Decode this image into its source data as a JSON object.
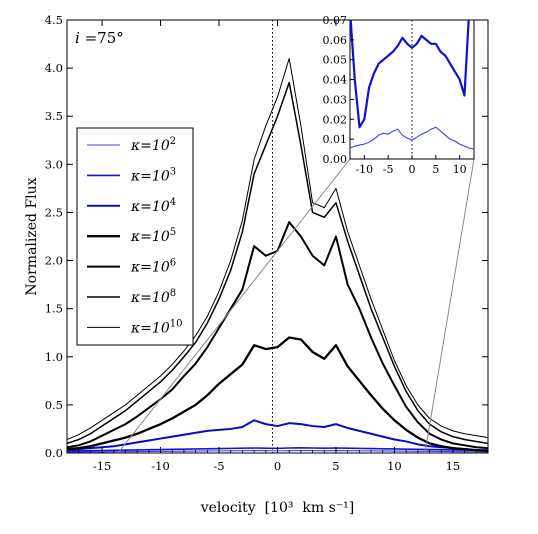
{
  "chart_data": {
    "type": "line",
    "panel_label_var": "i",
    "panel_label_value": " =75°",
    "xlabel": "velocity  [10³  km s⁻¹]",
    "ylabel": "Normalized Flux",
    "xlim": [
      -18,
      18
    ],
    "ylim": [
      0,
      4.5
    ],
    "x_ticks": [
      -15,
      -10,
      -5,
      0,
      5,
      10,
      15
    ],
    "y_ticks": [
      0.0,
      0.5,
      1.0,
      1.5,
      2.0,
      2.5,
      3.0,
      3.5,
      4.0,
      4.5
    ],
    "y_tick_labels": [
      "0.0",
      "0.5",
      "1.0",
      "1.5",
      "2.0",
      "2.5",
      "3.0",
      "3.5",
      "4.0",
      "4.5"
    ],
    "grid": false,
    "legend_position": "left",
    "zero_line": "dotted vertical line at x = 0",
    "x": [
      -18,
      -17,
      -16,
      -15,
      -14,
      -13,
      -12,
      -11,
      -10,
      -9,
      -8,
      -7,
      -6,
      -5,
      -4,
      -3,
      -2,
      -1,
      0,
      1,
      2,
      3,
      4,
      5,
      6,
      7,
      8,
      9,
      10,
      11,
      12,
      13,
      14,
      15,
      16,
      17,
      18
    ],
    "series": [
      {
        "name": "κ=10²",
        "color": "#4040ee",
        "values": [
          0.01,
          0.011,
          0.012,
          0.012,
          0.013,
          0.014,
          0.015,
          0.016,
          0.017,
          0.018,
          0.019,
          0.02,
          0.021,
          0.022,
          0.023,
          0.024,
          0.025,
          0.024,
          0.022,
          0.024,
          0.026,
          0.025,
          0.023,
          0.025,
          0.024,
          0.023,
          0.022,
          0.021,
          0.02,
          0.019,
          0.018,
          0.017,
          0.016,
          0.015,
          0.014,
          0.013,
          0.012
        ]
      },
      {
        "name": "κ=10³",
        "color": "#1515d8",
        "values": [
          0.02,
          0.022,
          0.024,
          0.026,
          0.028,
          0.03,
          0.032,
          0.034,
          0.036,
          0.038,
          0.04,
          0.042,
          0.044,
          0.046,
          0.048,
          0.05,
          0.052,
          0.05,
          0.048,
          0.052,
          0.054,
          0.052,
          0.05,
          0.052,
          0.05,
          0.048,
          0.046,
          0.044,
          0.042,
          0.04,
          0.038,
          0.036,
          0.034,
          0.032,
          0.03,
          0.028,
          0.026
        ]
      },
      {
        "name": "κ=10⁴",
        "color": "#0a0ac8",
        "values": [
          0.03,
          0.04,
          0.05,
          0.06,
          0.07,
          0.09,
          0.11,
          0.13,
          0.15,
          0.17,
          0.19,
          0.21,
          0.23,
          0.24,
          0.25,
          0.27,
          0.34,
          0.3,
          0.28,
          0.31,
          0.3,
          0.28,
          0.27,
          0.3,
          0.26,
          0.23,
          0.2,
          0.17,
          0.14,
          0.12,
          0.09,
          0.07,
          0.06,
          0.05,
          0.04,
          0.03,
          0.03
        ]
      },
      {
        "name": "κ=10⁵",
        "color": "#000000",
        "values": [
          0.04,
          0.05,
          0.07,
          0.1,
          0.13,
          0.16,
          0.2,
          0.25,
          0.3,
          0.36,
          0.43,
          0.5,
          0.6,
          0.72,
          0.82,
          0.92,
          1.12,
          1.08,
          1.1,
          1.2,
          1.18,
          1.05,
          0.98,
          1.12,
          0.9,
          0.75,
          0.6,
          0.46,
          0.34,
          0.24,
          0.16,
          0.1,
          0.07,
          0.05,
          0.04,
          0.03,
          0.02
        ]
      },
      {
        "name": "κ=10⁶",
        "color": "#000000",
        "values": [
          0.06,
          0.08,
          0.12,
          0.18,
          0.24,
          0.3,
          0.38,
          0.47,
          0.56,
          0.66,
          0.8,
          0.93,
          1.1,
          1.3,
          1.5,
          1.7,
          2.15,
          2.05,
          2.1,
          2.4,
          2.25,
          2.05,
          1.95,
          2.25,
          1.75,
          1.5,
          1.2,
          0.93,
          0.7,
          0.48,
          0.32,
          0.2,
          0.14,
          0.1,
          0.08,
          0.06,
          0.05
        ]
      },
      {
        "name": "κ=10⁸",
        "color": "#000000",
        "values": [
          0.1,
          0.14,
          0.2,
          0.28,
          0.36,
          0.44,
          0.54,
          0.64,
          0.74,
          0.86,
          1.0,
          1.15,
          1.35,
          1.6,
          1.9,
          2.3,
          2.9,
          3.2,
          3.5,
          3.85,
          3.2,
          2.5,
          2.45,
          2.6,
          2.2,
          1.85,
          1.5,
          1.2,
          0.9,
          0.64,
          0.44,
          0.3,
          0.22,
          0.17,
          0.14,
          0.12,
          0.1
        ]
      },
      {
        "name": "κ=10¹⁰",
        "color": "#000000",
        "values": [
          0.14,
          0.19,
          0.26,
          0.34,
          0.42,
          0.5,
          0.6,
          0.7,
          0.8,
          0.92,
          1.06,
          1.22,
          1.42,
          1.68,
          2.0,
          2.42,
          3.05,
          3.4,
          3.7,
          4.1,
          3.4,
          2.6,
          2.55,
          2.75,
          2.3,
          1.95,
          1.6,
          1.28,
          0.96,
          0.7,
          0.5,
          0.36,
          0.28,
          0.23,
          0.2,
          0.18,
          0.16
        ]
      }
    ],
    "series_style": [
      {
        "width": 1.1
      },
      {
        "width": 1.6
      },
      {
        "width": 2.0
      },
      {
        "width": 2.3
      },
      {
        "width": 2.0
      },
      {
        "width": 1.5
      },
      {
        "width": 1.0
      }
    ],
    "legend_prefix": "κ=10",
    "legend_exponents": [
      "2",
      "3",
      "4",
      "5",
      "6",
      "8",
      "10"
    ],
    "inset": {
      "xlim": [
        -13,
        13
      ],
      "ylim": [
        0,
        0.07
      ],
      "x_ticks": [
        -10,
        -5,
        0,
        5,
        10
      ],
      "y_ticks": [
        0.0,
        0.01,
        0.02,
        0.03,
        0.04,
        0.05,
        0.06,
        0.07
      ],
      "y_tick_labels": [
        "0.00",
        "0.01",
        "0.02",
        "0.03",
        "0.04",
        "0.05",
        "0.06",
        "0.07"
      ],
      "shows_series": [
        "κ=10²",
        "κ=10³",
        "κ=10⁴"
      ],
      "x": [
        -13,
        -12,
        -11,
        -10,
        -9,
        -8,
        -7,
        -6,
        -5,
        -4,
        -3,
        -2,
        -1,
        0,
        1,
        2,
        3,
        4,
        5,
        6,
        7,
        8,
        9,
        10,
        11,
        12,
        13
      ],
      "series": [
        {
          "name": "κ=10²",
          "color": "#4040ee",
          "width": 1.1,
          "values": [
            0.0055,
            0.0065,
            0.007,
            0.0075,
            0.0085,
            0.01,
            0.012,
            0.013,
            0.0125,
            0.014,
            0.015,
            0.012,
            0.0105,
            0.0095,
            0.011,
            0.0125,
            0.0135,
            0.015,
            0.016,
            0.014,
            0.012,
            0.01,
            0.009,
            0.0075,
            0.0065,
            0.0055,
            0.005
          ]
        },
        {
          "name": "κ=10³",
          "color": "#1010d0",
          "width": 2.2,
          "values": [
            0.075,
            0.04,
            0.016,
            0.02,
            0.036,
            0.043,
            0.048,
            0.05,
            0.052,
            0.054,
            0.057,
            0.061,
            0.058,
            0.056,
            0.058,
            0.062,
            0.06,
            0.058,
            0.058,
            0.054,
            0.052,
            0.048,
            0.044,
            0.04,
            0.032,
            0.075,
            0.075
          ]
        }
      ]
    }
  }
}
